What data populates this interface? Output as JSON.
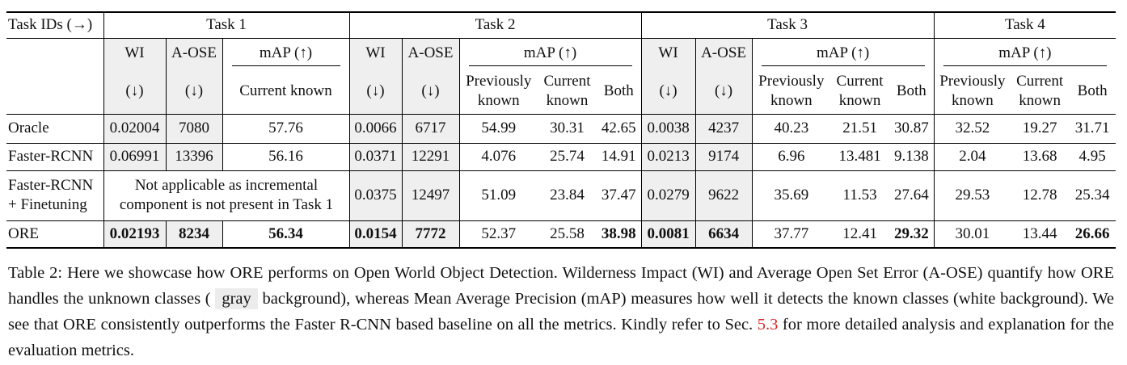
{
  "table": {
    "header": {
      "task_row": [
        "Task IDs (→)",
        "Task 1",
        "Task 2",
        "Task 3",
        "Task 4"
      ],
      "metric_row": [
        "WI",
        "A-OSE",
        "mAP (↑)",
        "WI",
        "A-OSE",
        "mAP (↑)",
        "WI",
        "A-OSE",
        "mAP (↑)",
        "mAP (↑)"
      ],
      "sub_row": [
        "(↓)",
        "(↓)",
        "Current known",
        "(↓)",
        "(↓)",
        "Previously known",
        "Current known",
        "Both",
        "(↓)",
        "(↓)",
        "Previously known",
        "Current known",
        "Both",
        "Previously known",
        "Current known",
        "Both"
      ]
    },
    "rows": [
      {
        "label": [
          "Oracle"
        ],
        "cells": [
          0.02004,
          7080,
          57.76,
          0.0066,
          6717,
          54.99,
          30.31,
          42.65,
          0.0038,
          4237,
          40.23,
          21.51,
          30.87,
          32.52,
          19.27,
          31.71
        ]
      },
      {
        "label": [
          "Faster-RCNN"
        ],
        "cells": [
          0.06991,
          13396,
          56.16,
          0.0371,
          12291,
          4.076,
          25.74,
          14.91,
          0.0213,
          9174,
          6.96,
          13.481,
          9.138,
          2.04,
          13.68,
          4.95
        ]
      },
      {
        "label": [
          "Faster-RCNN",
          "+ Finetuning"
        ],
        "note": [
          "Not applicable as incremental",
          "component is not present in Task 1"
        ],
        "cells": [
          0.0375,
          12497,
          51.09,
          23.84,
          37.47,
          0.0279,
          9622,
          35.69,
          11.53,
          27.64,
          29.53,
          12.78,
          25.34
        ]
      },
      {
        "label": [
          "ORE"
        ],
        "cells": [
          0.02193,
          8234,
          56.34,
          0.0154,
          7772,
          52.37,
          25.58,
          38.98,
          0.0081,
          6634,
          37.77,
          12.41,
          29.32,
          30.01,
          13.44,
          26.66
        ]
      }
    ]
  },
  "caption": [
    "Table 2: Here we showcase how ORE performs on Open World Object Detection. Wilderness Impact (WI) and Average Open Set Error (A-OSE) quantify how ORE handles the unknown classes (",
    "gray",
    "background), whereas Mean Average Precision (mAP) measures how well it detects the known classes (white background). We see that ORE consistently outperforms the Faster R-CNN based baseline on all the metrics. Kindly refer to Sec.",
    "5.3",
    "for more detailed analysis and explanation for the evaluation metrics."
  ]
}
